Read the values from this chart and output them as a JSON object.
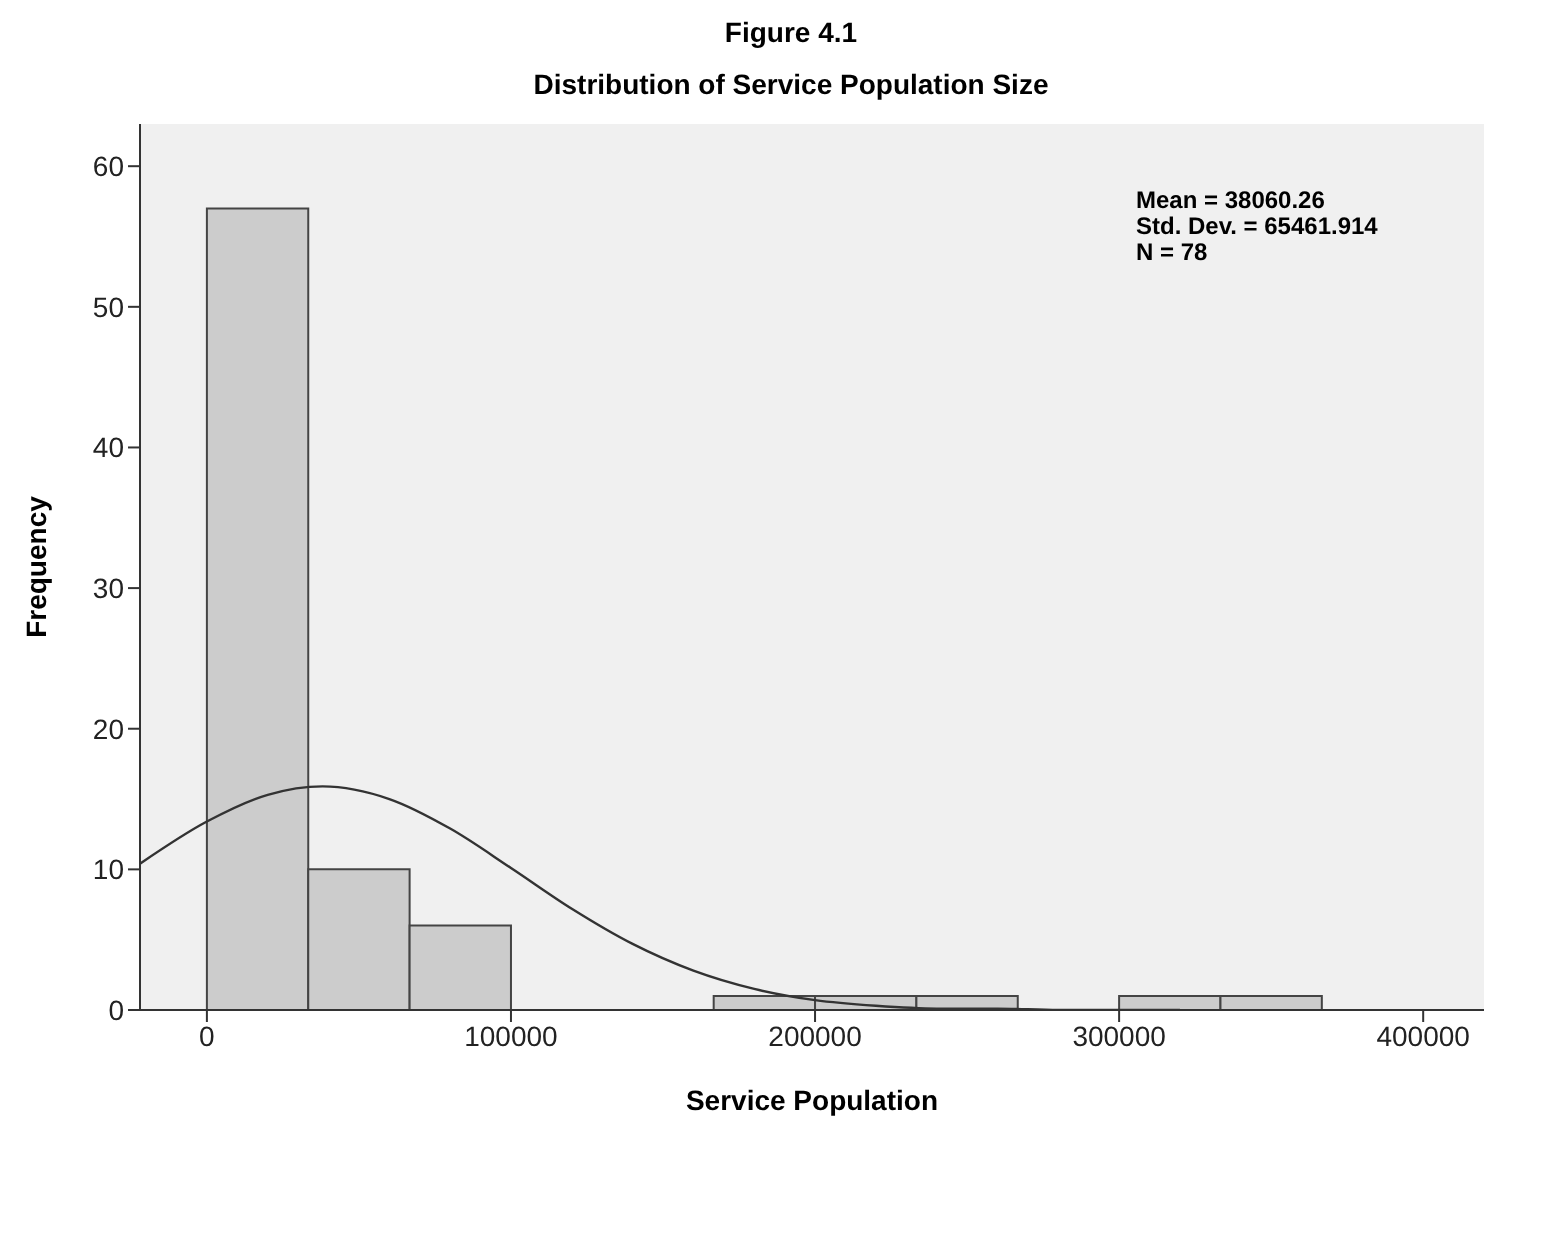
{
  "chart_data": {
    "type": "histogram",
    "title": "Figure 4.1",
    "subtitle": "Distribution of Service Population Size",
    "xlabel": "Service Population",
    "ylabel": "Frequency",
    "bins": [
      0,
      33333,
      66667,
      100000,
      133333,
      166667,
      200000,
      233333,
      266667,
      300000,
      333333,
      366667
    ],
    "values": [
      57,
      10,
      6,
      0,
      0,
      1,
      1,
      1,
      0,
      1,
      1
    ],
    "color": "#cccccc",
    "series": [
      {
        "type": "line",
        "color": "#333333",
        "x": [
          -22000,
          0,
          20000,
          38060,
          60000,
          80000,
          100000,
          120000,
          140000,
          160000,
          180000,
          200000,
          220000,
          240000,
          260000,
          280000,
          320000
        ],
        "values": [
          10.4,
          13.4,
          15.3,
          15.9,
          15,
          12.9,
          10.1,
          7.2,
          4.7,
          2.8,
          1.5,
          0.7,
          0.3,
          0.1,
          0.1,
          0,
          0
        ]
      }
    ],
    "xlim": [
      -22000,
      420000
    ],
    "xticks": [
      0,
      100000,
      200000,
      300000,
      400000
    ],
    "ylim": [
      0,
      63
    ],
    "yticks": [
      0,
      10,
      20,
      30,
      40,
      50,
      60
    ],
    "grid": false,
    "annotations": [
      "Mean = 38060.26",
      "Std. Dev. = 65461.914",
      "N = 78"
    ]
  }
}
